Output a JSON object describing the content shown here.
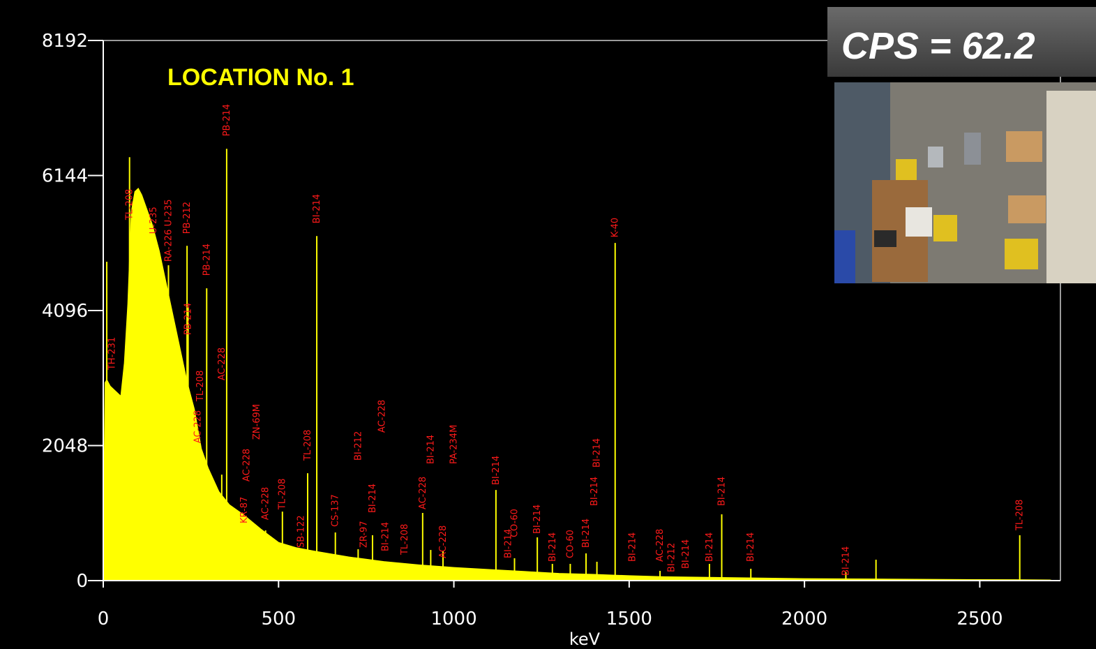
{
  "chart_data": {
    "type": "area",
    "title": "LOCATION No. 1",
    "x_label": "keV",
    "overlay_text": "CPS = 62.2",
    "xlim": [
      0,
      2730
    ],
    "ylim": [
      0,
      8192
    ],
    "xticks": [
      0,
      500,
      1000,
      1500,
      2000,
      2500
    ],
    "yticks": [
      0,
      2048,
      4096,
      6144,
      8192
    ],
    "series": [
      {
        "color": "#ffff00",
        "x": [
          0,
          5,
          10,
          20,
          30,
          40,
          50,
          60,
          70,
          80,
          90,
          100,
          110,
          120,
          140,
          160,
          180,
          200,
          220,
          240,
          260,
          280,
          300,
          330,
          360,
          400,
          450,
          500,
          550,
          600,
          700,
          800,
          900,
          1000,
          1100,
          1200,
          1300,
          1400,
          1500,
          1600,
          1800,
          2000,
          2200,
          2400,
          2600,
          2700,
          2710
        ],
        "values": [
          380,
          3000,
          3050,
          2950,
          2900,
          2850,
          2800,
          3300,
          4200,
          5600,
          5900,
          5950,
          5850,
          5700,
          5400,
          5000,
          4500,
          4000,
          3500,
          3000,
          2600,
          2000,
          1700,
          1350,
          1150,
          1000,
          780,
          580,
          500,
          450,
          360,
          290,
          240,
          200,
          170,
          140,
          110,
          95,
          75,
          60,
          45,
          30,
          25,
          18,
          14,
          10,
          0
        ]
      }
    ],
    "peaks": {
      "color": "#ffff00",
      "x": [
        10,
        75,
        186,
        239,
        242,
        295,
        338,
        352,
        463,
        511,
        583,
        609,
        662,
        727,
        768,
        911,
        934,
        969,
        1120,
        1173,
        1238,
        1281,
        1332,
        1377,
        1408,
        1460,
        1588,
        1729,
        1764,
        1847,
        2118,
        2204,
        2614
      ],
      "values": [
        4835,
        6422,
        4782,
        5078,
        4147,
        4433,
        1608,
        6549,
        762,
        1047,
        1629,
        5226,
        730,
        476,
        688,
        1026,
        465,
        444,
        1375,
        339,
        656,
        254,
        254,
        413,
        286,
        5121,
        148,
        254,
        1005,
        180,
        127,
        317,
        688
      ]
    },
    "annotation_color": "#ff1a1a",
    "annotations": [
      {
        "text": "TH-231",
        "x": 25,
        "y": 3195
      },
      {
        "text": "TL-208",
        "x": 75,
        "y": 5470
      },
      {
        "text": "U-235",
        "x": 143,
        "y": 5258
      },
      {
        "text": "RA-226 U-235",
        "x": 186,
        "y": 4835
      },
      {
        "text": "PB-212",
        "x": 239,
        "y": 5258
      },
      {
        "text": "PB-214",
        "x": 242,
        "y": 3724
      },
      {
        "text": "AC-228",
        "x": 270,
        "y": 2084
      },
      {
        "text": "TL-208",
        "x": 277,
        "y": 2719
      },
      {
        "text": "PB-214",
        "x": 295,
        "y": 4623
      },
      {
        "text": "AC-228",
        "x": 338,
        "y": 3036
      },
      {
        "text": "PB-214",
        "x": 352,
        "y": 6739
      },
      {
        "text": "KR-87",
        "x": 402,
        "y": 868
      },
      {
        "text": "AC-228",
        "x": 409,
        "y": 1502
      },
      {
        "text": "ZN-69M",
        "x": 438,
        "y": 2137
      },
      {
        "text": "AC-228",
        "x": 463,
        "y": 920
      },
      {
        "text": "TL-208",
        "x": 510,
        "y": 1079
      },
      {
        "text": "SB-122",
        "x": 564,
        "y": 497
      },
      {
        "text": "TL-208",
        "x": 583,
        "y": 1820
      },
      {
        "text": "BI-214",
        "x": 609,
        "y": 5417
      },
      {
        "text": "CS-137",
        "x": 662,
        "y": 815
      },
      {
        "text": "BI-212",
        "x": 727,
        "y": 1820
      },
      {
        "text": "ZR-97",
        "x": 743,
        "y": 497
      },
      {
        "text": "BI-214",
        "x": 768,
        "y": 1026
      },
      {
        "text": "AC-228",
        "x": 795,
        "y": 2243
      },
      {
        "text": "BI-214",
        "x": 805,
        "y": 444
      },
      {
        "text": "TL-208",
        "x": 860,
        "y": 391
      },
      {
        "text": "AC-228",
        "x": 911,
        "y": 1079
      },
      {
        "text": "BI-214",
        "x": 934,
        "y": 1767
      },
      {
        "text": "AC-228",
        "x": 969,
        "y": 339
      },
      {
        "text": "PA-234M",
        "x": 1000,
        "y": 1767
      },
      {
        "text": "BI-214",
        "x": 1120,
        "y": 1450
      },
      {
        "text": "BI-214",
        "x": 1155,
        "y": 339
      },
      {
        "text": "CO-60",
        "x": 1173,
        "y": 656
      },
      {
        "text": "BI-214",
        "x": 1238,
        "y": 709
      },
      {
        "text": "BI-214",
        "x": 1281,
        "y": 286
      },
      {
        "text": "CO-60",
        "x": 1332,
        "y": 339
      },
      {
        "text": "BI-214",
        "x": 1377,
        "y": 497
      },
      {
        "text": "BI-214",
        "x": 1401,
        "y": 1132
      },
      {
        "text": "BI-214",
        "x": 1408,
        "y": 1714
      },
      {
        "text": "K-40",
        "x": 1460,
        "y": 5205
      },
      {
        "text": "BI-214",
        "x": 1509,
        "y": 286
      },
      {
        "text": "AC-228",
        "x": 1588,
        "y": 286
      },
      {
        "text": "BI-212",
        "x": 1621,
        "y": 127
      },
      {
        "text": "BI-214",
        "x": 1661,
        "y": 180
      },
      {
        "text": "BI-214",
        "x": 1729,
        "y": 286
      },
      {
        "text": "BI-214",
        "x": 1764,
        "y": 1132
      },
      {
        "text": "BI-214",
        "x": 1847,
        "y": 286
      },
      {
        "text": "BI-214",
        "x": 2118,
        "y": 74
      },
      {
        "text": "TL-208",
        "x": 2614,
        "y": 762
      }
    ]
  }
}
